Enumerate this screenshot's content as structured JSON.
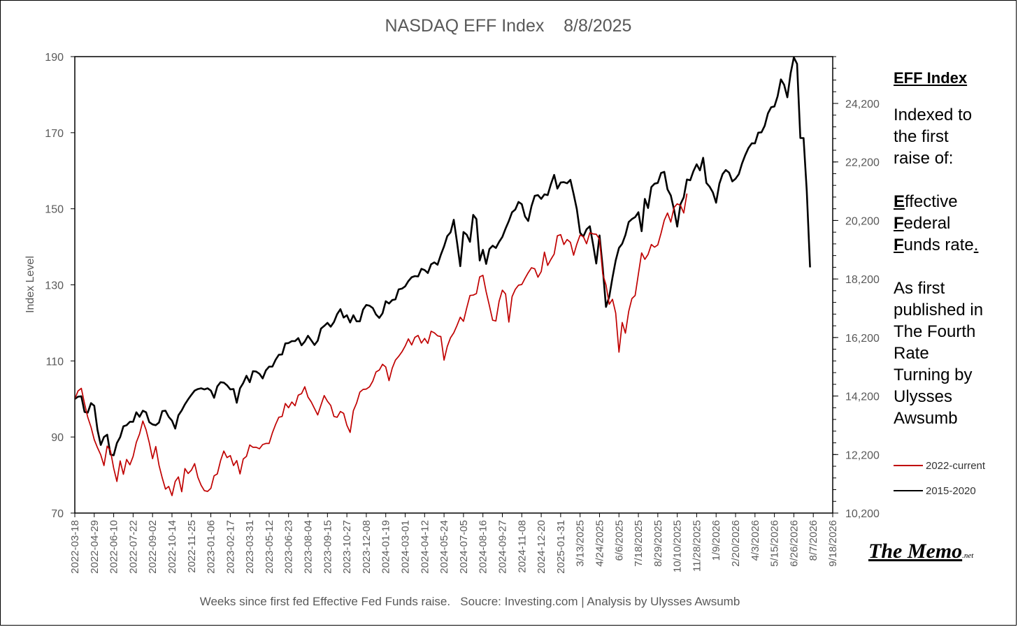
{
  "chart_data": {
    "type": "line",
    "title": "NASDAQ EFF Index    8/8/2025",
    "ylabel": "Index Level",
    "xlabel": "Weeks since first fed Effective Fed Funds raise.   Soucre: Investing.com | Analysis by Ulysses Awsumb",
    "ylim": [
      70,
      190
    ],
    "y_ticks": [
      "70",
      "90",
      "110",
      "130",
      "150",
      "170",
      "190"
    ],
    "y2lim": [
      10200,
      25800
    ],
    "y2_ticks": [
      "10,200",
      "12,200",
      "14,200",
      "16,200",
      "18,200",
      "20,200",
      "22,200",
      "24,200"
    ],
    "x_ticks": [
      "2022-03-18",
      "2022-04-29",
      "2022-06-10",
      "2022-07-22",
      "2022-09-02",
      "2022-10-14",
      "2022-11-25",
      "2023-01-06",
      "2023-02-17",
      "2023-03-31",
      "2023-05-12",
      "2023-06-23",
      "2023-08-04",
      "2023-09-15",
      "2023-10-27",
      "2023-12-08",
      "2024-01-19",
      "2024-03-01",
      "2024-04-12",
      "2024-05-24",
      "2024-07-05",
      "2024-08-16",
      "2024-09-27",
      "2024-11-08",
      "2024-12-20",
      "2025-01-31",
      "3/13/2025",
      "4/24/2025",
      "6/6/2025",
      "7/18/2025",
      "8/29/2025",
      "10/10/2025",
      "11/28/2025",
      "1/9/2026",
      "2/20/2026",
      "4/3/2026",
      "5/15/2026",
      "6/26/2026",
      "8/7/2026",
      "9/18/2026"
    ],
    "x_range_weeks": [
      0,
      234
    ],
    "series": [
      {
        "name": "2022-current",
        "color": "#c00000",
        "values": [
          100,
          102.1,
          102.8,
          98.8,
          95.2,
          92.6,
          89.3,
          87.2,
          85.3,
          82.5,
          87.6,
          86.4,
          81.8,
          78.3,
          83.7,
          80.2,
          84.1,
          82.7,
          84.9,
          88.6,
          90.8,
          94.2,
          91.9,
          88.5,
          84.3,
          87.5,
          82.6,
          79.2,
          76.3,
          77.0,
          74.6,
          78.3,
          79.5,
          75.6,
          81.7,
          80.4,
          81.3,
          83.0,
          79.4,
          77.3,
          75.9,
          75.7,
          76.5,
          79.8,
          80.3,
          83.8,
          86.3,
          84.6,
          85.1,
          82.5,
          83.8,
          80.3,
          84.2,
          84.9,
          87.9,
          87.3,
          87.3,
          86.9,
          88.0,
          88.3,
          88.3,
          91.1,
          93.3,
          95.2,
          95.4,
          98.8,
          97.7,
          99.2,
          98.2,
          101.0,
          101.4,
          103.2,
          100.5,
          99.2,
          97.5,
          95.8,
          98.4,
          100.9,
          99.4,
          98.3,
          95.4,
          95.2,
          96.7,
          96.2,
          93.1,
          91.2,
          96.9,
          98.9,
          101.8,
          102.5,
          102.6,
          103.2,
          104.7,
          107.1,
          107.6,
          109.1,
          108.4,
          104.8,
          108.1,
          110.2,
          111.2,
          112.4,
          113.9,
          115.8,
          114.2,
          116.2,
          116.7,
          114.7,
          115.9,
          114.6,
          117.8,
          117.4,
          116.6,
          116.4,
          110.2,
          113.8,
          116.1,
          117.4,
          119.3,
          121.5,
          120.4,
          123.9,
          127.2,
          127.3,
          127.7,
          132.1,
          132.5,
          128.2,
          124.5,
          120.7,
          120.5,
          125.7,
          128.6,
          127.6,
          120.2,
          126.9,
          128.8,
          129.9,
          130.1,
          131.7,
          133.2,
          134.5,
          134.2,
          132.0,
          133.5,
          138.6,
          135.1,
          136.7,
          138.1,
          142.9,
          143.2,
          140.6,
          141.9,
          141.2,
          137.8,
          140.7,
          143.1,
          142.7,
          140.8,
          143.7,
          143.4,
          143.3,
          142.0,
          132.8,
          130.0,
          124.9,
          126.2,
          122.6,
          112.3,
          120.1,
          117.3,
          123.0,
          126.4,
          127.2,
          132.9,
          138.4,
          136.7,
          138.0,
          140.6,
          139.9,
          140.5,
          143.6,
          147.0,
          148.9,
          146.5,
          150.3,
          151.3,
          150.9,
          148.9,
          154.0
        ]
      },
      {
        "name": "2015-2020",
        "color": "#000000",
        "values": [
          100,
          100.6,
          100.7,
          96.6,
          96.4,
          98.9,
          98.2,
          91.9,
          87.9,
          90.0,
          90.6,
          85.4,
          85.2,
          88.4,
          90.0,
          92.8,
          93.1,
          94.0,
          94.0,
          96.5,
          95.3,
          96.9,
          96.5,
          93.9,
          93.3,
          93.1,
          93.8,
          96.8,
          96.9,
          95.3,
          94.3,
          92.2,
          95.7,
          97.0,
          98.6,
          99.9,
          101.1,
          102.2,
          102.6,
          102.8,
          102.5,
          102.8,
          102.2,
          100.3,
          103.3,
          104.4,
          104.3,
          103.6,
          102.5,
          102.6,
          99.0,
          102.8,
          104.2,
          106.1,
          104.4,
          107.3,
          107.2,
          106.6,
          105.4,
          107.5,
          108.5,
          108.5,
          110.3,
          111.6,
          111.7,
          114.6,
          114.7,
          115.2,
          115.2,
          116.0,
          114.1,
          115.1,
          116.6,
          115.4,
          114.2,
          115.3,
          118.5,
          119.2,
          120.0,
          119.0,
          120.2,
          122.3,
          123.6,
          121.4,
          122.0,
          120.1,
          122.0,
          120.4,
          120.4,
          123.5,
          124.7,
          124.5,
          123.9,
          122.2,
          121.3,
          122.5,
          125.7,
          125.1,
          126.0,
          126.2,
          128.8,
          129.0,
          129.6,
          131.0,
          132.0,
          132.3,
          132.2,
          134.2,
          133.9,
          133.1,
          135.4,
          135.9,
          135.3,
          137.9,
          140.1,
          142.8,
          143.8,
          147.1,
          141.3,
          134.9,
          143.9,
          143.2,
          141.3,
          148.4,
          147.3,
          136.4,
          139.2,
          135.5,
          139.4,
          140.3,
          139.7,
          141.3,
          142.6,
          144.8,
          146.8,
          149.1,
          149.8,
          151.8,
          151.2,
          148.0,
          146.8,
          150.7,
          153.4,
          153.6,
          152.6,
          153.8,
          153.6,
          156.5,
          158.9,
          155.3,
          156.9,
          157.0,
          156.7,
          157.6,
          153.9,
          149.9,
          143.7,
          142.7,
          144.6,
          145.4,
          140.7,
          135.6,
          143.0,
          134.4,
          124.2,
          126.9,
          131.9,
          136.4,
          139.7,
          140.8,
          143.1,
          146.5,
          147.3,
          147.8,
          149.1,
          144.1,
          152.6,
          150.2,
          155.7,
          156.6,
          156.8,
          159.4,
          159.7,
          155.1,
          153.5,
          149.8,
          145.3,
          151.2,
          153.0,
          157.7,
          157.5,
          159.9,
          161.7,
          160.1,
          163.4,
          156.8,
          155.8,
          154.3,
          151.6,
          156.6,
          159.1,
          160.2,
          159.5,
          157.2,
          157.9,
          159.1,
          161.9,
          164.1,
          166.0,
          167.2,
          167.2,
          170.0,
          170.1,
          171.8,
          175.1,
          176.7,
          176.9,
          179.6,
          184.0,
          182.6,
          179.3,
          185.6,
          189.8,
          188.1,
          168.6,
          168.6,
          154.6,
          134.6
        ]
      }
    ]
  },
  "side_note": {
    "heading": "EFF Index",
    "lines_1": [
      "Indexed to",
      "the first",
      "raise of:"
    ],
    "eff_lines": [
      {
        "initial": "E",
        "rest": "ffective"
      },
      {
        "initial": "F",
        "rest": "ederal"
      },
      {
        "initial": "F",
        "rest": "unds rate",
        "end": "."
      }
    ],
    "lines_2": [
      "As first",
      "published in",
      "The Fourth",
      "Rate",
      "Turning by",
      "Ulysses",
      "Awsumb"
    ]
  },
  "legend": [
    {
      "label": "2022-current",
      "color": "#c00000"
    },
    {
      "label": "2015-2020",
      "color": "#000000"
    }
  ],
  "branding": {
    "main": "The Memo",
    "suffix": ".net"
  }
}
